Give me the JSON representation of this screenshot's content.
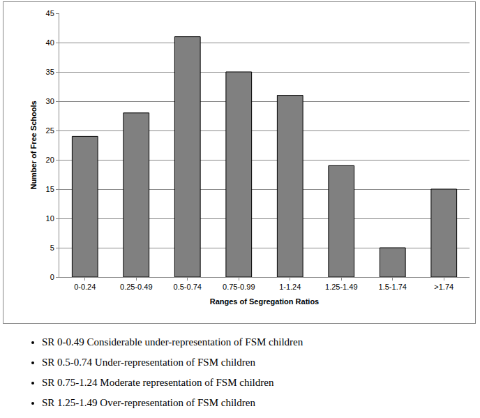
{
  "chart_data": {
    "type": "bar",
    "categories": [
      "0-0.24",
      "0.25-0.49",
      "0.5-0.74",
      "0.75-0.99",
      "1-1.24",
      "1.25-1.49",
      "1.5-1.74",
      ">1.74"
    ],
    "values": [
      24,
      28,
      41,
      35,
      31,
      19,
      5,
      15
    ],
    "color": "#808080",
    "x_label": "Ranges of Segregation Ratios",
    "y_label": "Number of Free Schools",
    "ylim": [
      0,
      45
    ],
    "yticks": [
      0,
      5,
      10,
      15,
      20,
      25,
      30,
      35,
      40,
      45
    ],
    "grid": true,
    "annotations": [
      "SR 0-0.49 Considerable under-representation of FSM children",
      "SR 0.5-0.74 Under-representation of FSM children",
      "SR 0.75-1.24 Moderate representation of FSM children",
      "SR 1.25-1.49 Over-representation of FSM children"
    ]
  }
}
